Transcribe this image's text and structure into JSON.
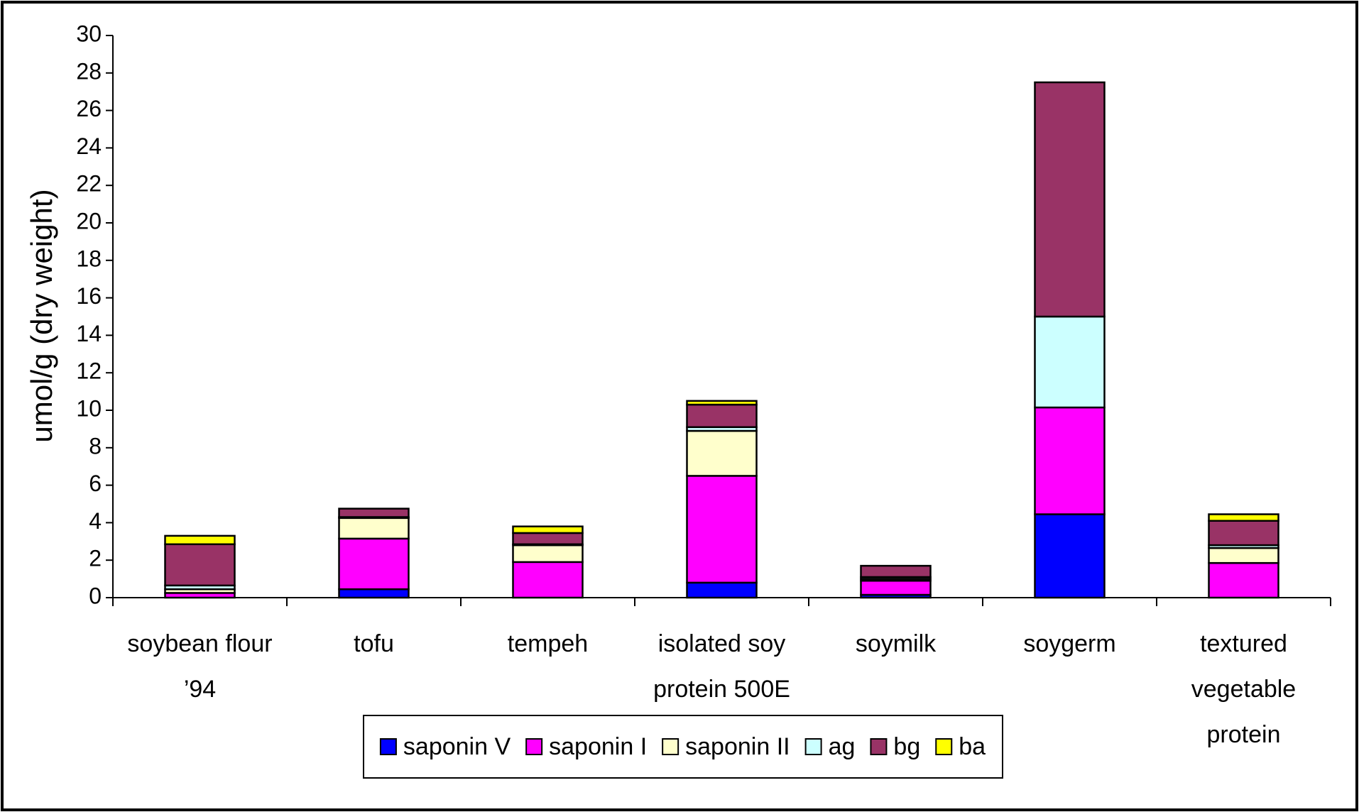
{
  "chart_data": {
    "type": "stacked_bar",
    "y_label": "umol/g (dry weight)",
    "categories": [
      "soybean flour ’94",
      "tofu",
      "tempeh",
      "isolated soy protein 500E",
      "soymilk",
      "soygerm",
      "textured vegetable protein"
    ],
    "series": [
      {
        "name": "saponin V",
        "color": "#0000ff",
        "values": [
          0,
          0.45,
          0,
          0.8,
          0.15,
          4.45,
          0
        ]
      },
      {
        "name": "saponin I",
        "color": "#ff00ff",
        "values": [
          0.25,
          2.7,
          1.9,
          5.7,
          0.75,
          5.7,
          1.85
        ]
      },
      {
        "name": "saponin II",
        "color": "#ffffcc",
        "values": [
          0.2,
          1.1,
          0.9,
          2.4,
          0.1,
          0,
          0.8
        ]
      },
      {
        "name": "ag",
        "color": "#ccffff",
        "values": [
          0.2,
          0.05,
          0.05,
          0.2,
          0.1,
          4.85,
          0.15
        ]
      },
      {
        "name": "bg",
        "color": "#993366",
        "values": [
          2.2,
          0.45,
          0.6,
          1.2,
          0.6,
          12.5,
          1.3
        ]
      },
      {
        "name": "ba",
        "color": "#ffff00",
        "values": [
          0.45,
          0,
          0.35,
          0.2,
          0,
          0,
          0.35
        ]
      }
    ],
    "ylim": [
      0,
      30
    ],
    "yticks": [
      0,
      2,
      4,
      6,
      8,
      10,
      12,
      14,
      16,
      18,
      20,
      22,
      24,
      26,
      28,
      30
    ],
    "legend": "bottom"
  }
}
